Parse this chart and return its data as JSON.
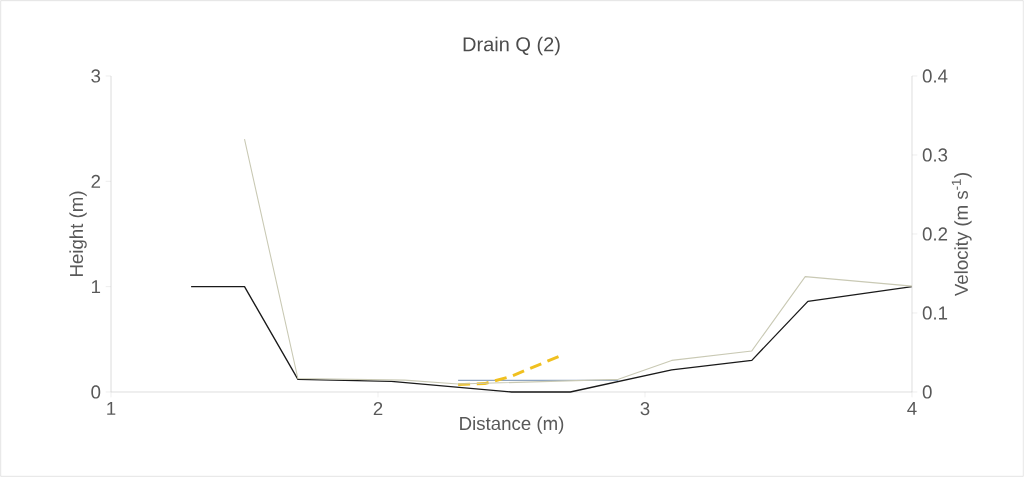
{
  "chart_data": {
    "type": "line",
    "title": "Drain Q (2)",
    "xlabel": "Distance (m)",
    "ylabel": "Height (m)",
    "y2label": "Velocity (m s$^{-1}$)",
    "xlim": [
      1,
      4
    ],
    "xticks": [
      1,
      2,
      3,
      4
    ],
    "ylim": [
      0,
      3
    ],
    "yticks": [
      0,
      1,
      2,
      3
    ],
    "y2lim": [
      0,
      0.4
    ],
    "y2ticks": [
      0,
      0.1,
      0.2,
      0.3,
      0.4
    ],
    "series": [
      {
        "color": "#1a1a1a",
        "x": [
          1.3,
          1.5,
          1.7,
          2.05,
          2.5,
          2.72,
          3.1,
          3.4,
          3.61,
          4.0
        ],
        "values": [
          1.0,
          1.0,
          0.12,
          0.1,
          0.0,
          0.0,
          0.21,
          0.3,
          0.86,
          1.0
        ]
      },
      {
        "color": "#c9c9b4",
        "axis": "y2",
        "x": [
          1.5,
          1.7,
          2.1,
          2.3,
          2.9,
          3.1,
          3.4,
          3.6,
          4.0
        ],
        "values": [
          0.32,
          0.017,
          0.015,
          0.01,
          0.016,
          0.04,
          0.052,
          0.146,
          0.134
        ]
      },
      {
        "color": "#8ea4bf",
        "x": [
          2.3,
          2.9
        ],
        "values": [
          0.11,
          0.11
        ]
      },
      {
        "color": "#f0c020",
        "line_style": "dashed",
        "x": [
          2.3,
          2.4,
          2.5,
          2.68
        ],
        "values": [
          0.07,
          0.08,
          0.15,
          0.34
        ]
      }
    ]
  }
}
